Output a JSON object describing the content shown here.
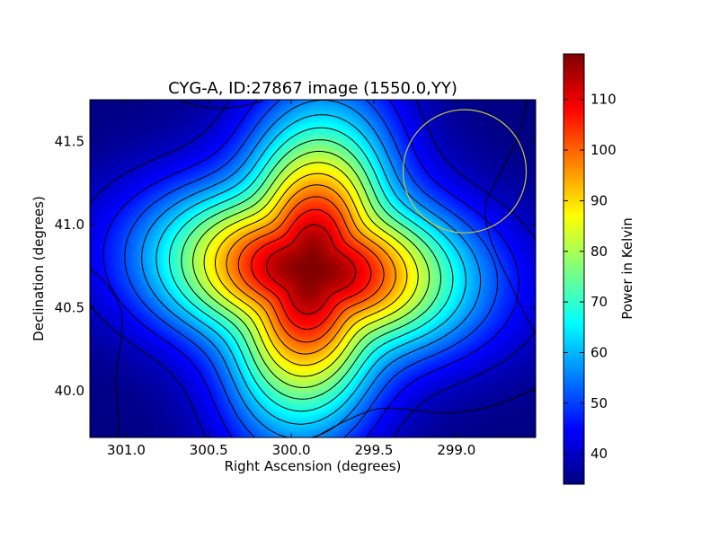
{
  "chart_data": {
    "type": "heatmap",
    "title": "CYG-A, ID:27867 image (1550.0,YY)",
    "xlabel": "Right Ascension (degrees)",
    "ylabel": "Declination (degrees)",
    "colorbar_label": "Power in Kelvin",
    "colormap": "jet",
    "x_inverted": true,
    "xlim": [
      301.22,
      298.52
    ],
    "ylim": [
      39.72,
      41.75
    ],
    "x_ticks": [
      301.0,
      300.5,
      300.0,
      299.5,
      299.0
    ],
    "x_tick_labels": [
      "301.0",
      "300.5",
      "300.0",
      "299.5",
      "299.0"
    ],
    "y_ticks": [
      40.0,
      40.5,
      41.0,
      41.5
    ],
    "y_tick_labels": [
      "40.0",
      "40.5",
      "41.0",
      "41.5"
    ],
    "colorbar_range": [
      34,
      119
    ],
    "colorbar_ticks": [
      40,
      50,
      60,
      70,
      80,
      90,
      100,
      110
    ],
    "colorbar_tick_labels": [
      "40",
      "50",
      "60",
      "70",
      "80",
      "90",
      "100",
      "110"
    ],
    "peak": {
      "ra": 299.88,
      "dec": 40.73,
      "value": 119
    },
    "background_value": 34,
    "contour_color": "#000000",
    "beam_circle": {
      "ra_center": 298.95,
      "dec_center": 41.32,
      "radius_deg": 0.37,
      "color": "#c8c83c"
    }
  }
}
